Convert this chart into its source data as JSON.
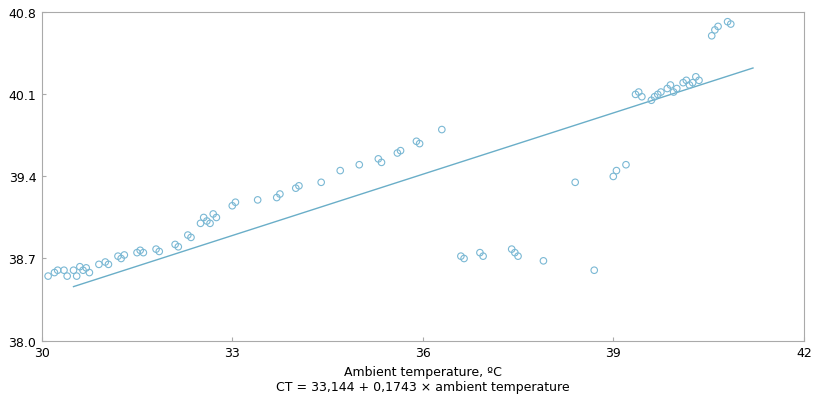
{
  "xlabel": "Ambient temperature, ºC",
  "xlabel2": "CT = 33,144 + 0,1743 × ambient temperature",
  "xlim": [
    30,
    42
  ],
  "ylim": [
    38.0,
    40.8
  ],
  "xticks": [
    30,
    33,
    36,
    39,
    42
  ],
  "yticks": [
    38.0,
    38.7,
    39.4,
    40.1,
    40.8
  ],
  "intercept": 33.144,
  "slope": 0.1743,
  "scatter_color": "#7ab8d4",
  "line_color": "#6aaec8",
  "background_color": "#ffffff",
  "scatter_x": [
    30.1,
    30.2,
    30.25,
    30.35,
    30.4,
    30.5,
    30.55,
    30.6,
    30.65,
    30.7,
    30.75,
    30.9,
    31.0,
    31.05,
    31.2,
    31.25,
    31.3,
    31.5,
    31.55,
    31.6,
    31.8,
    31.85,
    32.1,
    32.15,
    32.3,
    32.35,
    32.5,
    32.55,
    32.6,
    32.65,
    32.7,
    32.75,
    33.0,
    33.05,
    33.4,
    33.7,
    33.75,
    34.0,
    34.05,
    34.4,
    34.7,
    35.0,
    35.3,
    35.35,
    35.6,
    35.65,
    35.9,
    35.95,
    36.3,
    36.6,
    36.65,
    36.9,
    36.95,
    37.4,
    37.45,
    37.5,
    37.9,
    38.4,
    38.7,
    39.0,
    39.05,
    39.2,
    39.35,
    39.4,
    39.45,
    39.6,
    39.65,
    39.7,
    39.75,
    39.85,
    39.9,
    39.95,
    40.0,
    40.1,
    40.15,
    40.2,
    40.25,
    40.3,
    40.35,
    40.55,
    40.6,
    40.65,
    40.8,
    40.85
  ],
  "scatter_y": [
    38.55,
    38.58,
    38.6,
    38.6,
    38.55,
    38.6,
    38.55,
    38.63,
    38.6,
    38.62,
    38.58,
    38.65,
    38.67,
    38.65,
    38.72,
    38.7,
    38.73,
    38.75,
    38.77,
    38.75,
    38.78,
    38.76,
    38.82,
    38.8,
    38.9,
    38.88,
    39.0,
    39.05,
    39.02,
    39.0,
    39.08,
    39.05,
    39.15,
    39.18,
    39.2,
    39.22,
    39.25,
    39.3,
    39.32,
    39.35,
    39.45,
    39.5,
    39.55,
    39.52,
    39.6,
    39.62,
    39.7,
    39.68,
    39.8,
    38.72,
    38.7,
    38.75,
    38.72,
    38.78,
    38.75,
    38.72,
    38.68,
    39.35,
    38.6,
    39.4,
    39.45,
    39.5,
    40.1,
    40.12,
    40.08,
    40.05,
    40.08,
    40.1,
    40.12,
    40.15,
    40.18,
    40.12,
    40.15,
    40.2,
    40.22,
    40.18,
    40.2,
    40.25,
    40.22,
    40.6,
    40.65,
    40.68,
    40.72,
    40.7
  ]
}
